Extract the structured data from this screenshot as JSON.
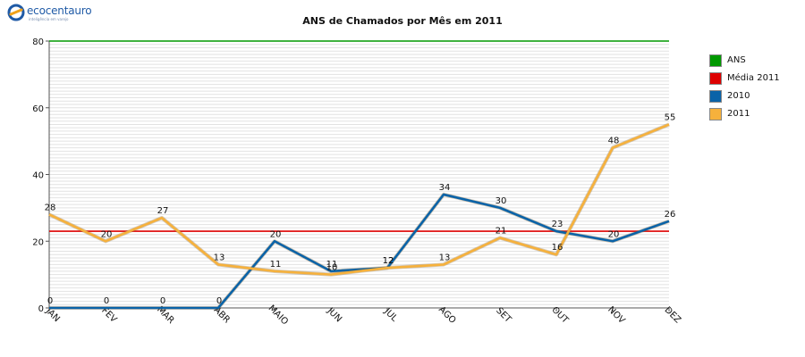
{
  "logo": {
    "text": "ecocentauro",
    "tagline": "inteligência em varejo",
    "colors": {
      "ring": "#1f5aa6",
      "accent": "#f0a21a"
    }
  },
  "chart_data": {
    "type": "line",
    "title": "ANS de Chamados por Mês em 2011",
    "xlabel": "",
    "ylabel": "",
    "categories": [
      "JAN",
      "FEV",
      "MAR",
      "ABR",
      "MAIO",
      "JUN",
      "JUL",
      "AGO",
      "SET",
      "OUT",
      "NOV",
      "DEZ"
    ],
    "ylim": [
      0,
      80
    ],
    "yticks": [
      0,
      20,
      40,
      60,
      80
    ],
    "grid": true,
    "legend_position": "right",
    "series": [
      {
        "name": "ANS",
        "color": "#009900",
        "values": [
          80,
          80,
          80,
          80,
          80,
          80,
          80,
          80,
          80,
          80,
          80,
          80
        ],
        "show_labels": false
      },
      {
        "name": "Média 2011",
        "color": "#dd0000",
        "values": [
          23,
          23,
          23,
          23,
          23,
          23,
          23,
          23,
          23,
          23,
          23,
          23
        ],
        "show_labels": false
      },
      {
        "name": "2010",
        "color": "#0a63a8",
        "values": [
          0,
          0,
          0,
          0,
          20,
          11,
          12,
          34,
          30,
          23,
          20,
          26
        ],
        "show_labels": true
      },
      {
        "name": "2011",
        "color": "#f6b13c",
        "values": [
          28,
          20,
          27,
          13,
          11,
          10,
          12,
          13,
          21,
          16,
          48,
          55
        ],
        "show_labels": true
      }
    ]
  }
}
